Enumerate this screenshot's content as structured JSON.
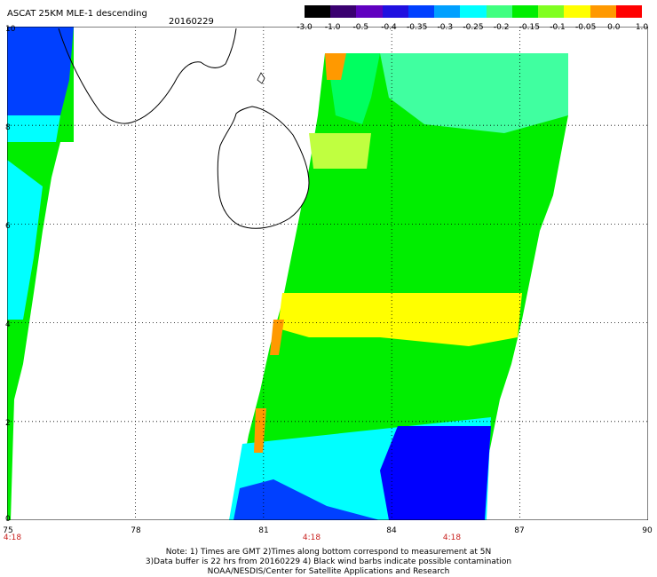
{
  "header": {
    "title": "ASCAT 25KM MLE-1 descending",
    "date": "20160229"
  },
  "colorbar": {
    "labels": [
      "-3.0",
      "-1.0",
      "-0.5",
      "-0.4",
      "-0.35",
      "-0.3",
      "-0.25",
      "-0.2",
      "-0.15",
      "-0.1",
      "-0.05",
      "0.0",
      "1.0"
    ],
    "colors": [
      "#000000",
      "#3a0070",
      "#6000c0",
      "#2010e0",
      "#0040ff",
      "#00a0ff",
      "#00ffff",
      "#40ff80",
      "#00ee00",
      "#80ff20",
      "#ffff00",
      "#ff9900",
      "#ff0000"
    ]
  },
  "axes": {
    "lon_ticks": [
      "75",
      "78",
      "81",
      "84",
      "87",
      "90"
    ],
    "lat_ticks": [
      "0",
      "2",
      "4",
      "6",
      "8",
      "10"
    ],
    "lon_range": [
      75,
      90
    ],
    "lat_range": [
      0,
      10
    ],
    "grid": true
  },
  "times": [
    {
      "label": "4:18",
      "lon": 75
    },
    {
      "label": "4:18",
      "lon": 82
    },
    {
      "label": "4:18",
      "lon": 85.3
    }
  ],
  "notes": [
    "Note: 1) Times are GMT 2)Times along bottom correspond to measurement at 5N",
    "3)Data buffer is 22 hrs from 20160229 4) Black wind barbs indicate possible contamination",
    "NOAA/NESDIS/Center for Satellite Applications and Research"
  ],
  "map": {
    "landmass": "Sri Lanka",
    "swath_colors": {
      "low": "#0000ff",
      "mid": "#00ffff",
      "high": "#00ee00",
      "peak": "#ffff00",
      "max": "#ff9900"
    }
  }
}
